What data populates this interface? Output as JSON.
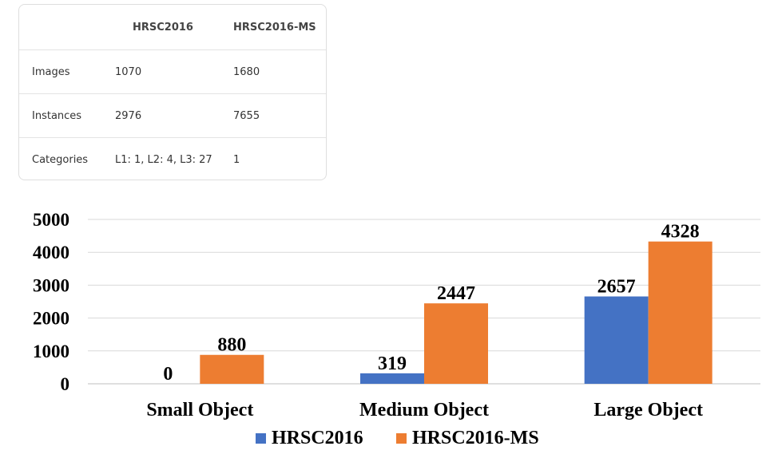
{
  "table": {
    "headers": [
      "",
      "HRSC2016",
      "HRSC2016-MS"
    ],
    "rows": [
      [
        "Images",
        "1070",
        "1680"
      ],
      [
        "Instances",
        "2976",
        "7655"
      ],
      [
        "Categories",
        "L1: 1, L2: 4, L3: 27",
        "1"
      ]
    ]
  },
  "chart_data": {
    "type": "bar",
    "title": "",
    "xlabel": "",
    "ylabel": "",
    "categories": [
      "Small Object",
      "Medium Object",
      "Large Object"
    ],
    "series": [
      {
        "name": "HRSC2016",
        "values": [
          0,
          319,
          2657
        ],
        "color": "#4472c4"
      },
      {
        "name": "HRSC2016-MS",
        "values": [
          880,
          2447,
          4328
        ],
        "color": "#ed7d31"
      }
    ],
    "yticks": [
      0,
      1000,
      2000,
      3000,
      4000,
      5000
    ],
    "ylim": [
      0,
      5000
    ],
    "grid": true,
    "legend": "bottom"
  }
}
